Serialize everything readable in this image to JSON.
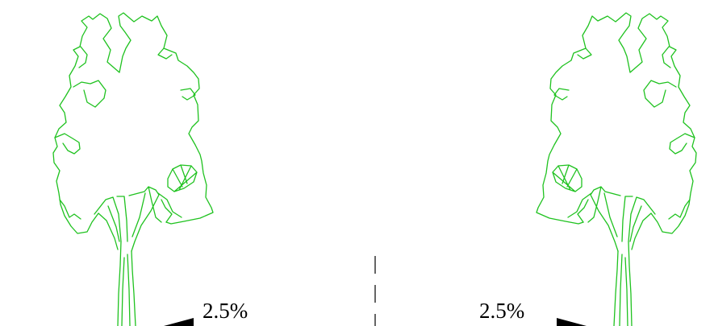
{
  "annotations": {
    "left_slope": "2.5%",
    "right_slope": "2.5%"
  },
  "colors": {
    "tree_stroke": "#1fc21f",
    "annotation": "#000000",
    "background": "#ffffff"
  }
}
